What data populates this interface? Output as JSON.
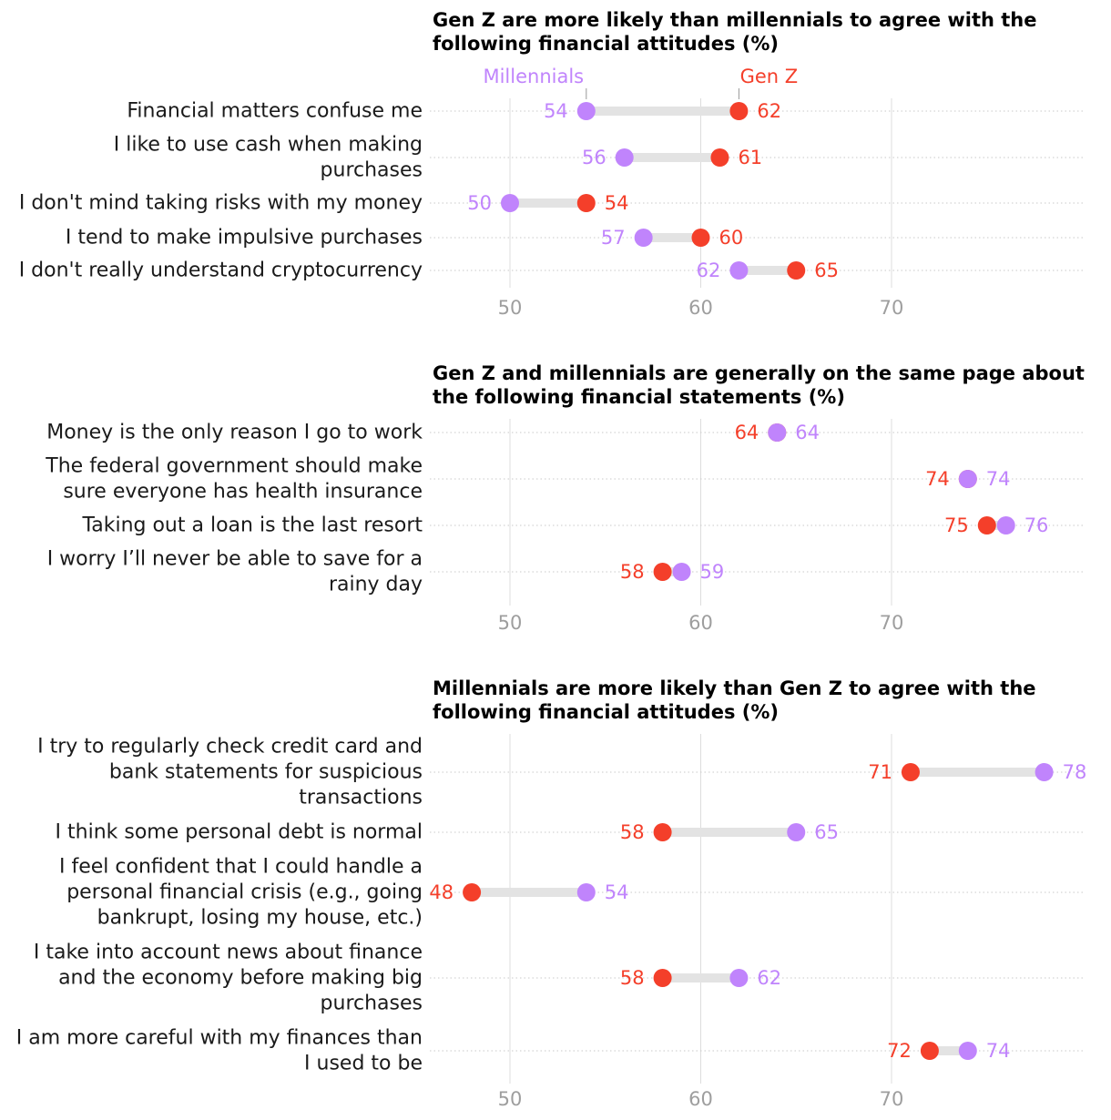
{
  "colors": {
    "millennials": "#c084fc",
    "genz": "#f43f2a",
    "gap": "#e3e3e3",
    "grid": "#dddddd",
    "tick": "#9e9e9e"
  },
  "legend": {
    "millennials": "Millennials",
    "genz": "Gen Z"
  },
  "chart_data": [
    {
      "type": "dumbbell",
      "title": [
        "Gen Z are more likely than millennials to agree with the",
        "following financial attitudes (%)"
      ],
      "x_ticks": [
        50,
        60,
        70
      ],
      "xlim": [
        45.5,
        79.5
      ],
      "rows": [
        {
          "label": [
            "Financial matters confuse me"
          ],
          "millennials": 54,
          "genz": 62
        },
        {
          "label": [
            "I like to use cash when making",
            "purchases"
          ],
          "millennials": 56,
          "genz": 61
        },
        {
          "label": [
            "I don't mind taking risks with my money"
          ],
          "millennials": 50,
          "genz": 54
        },
        {
          "label": [
            "I tend to make impulsive purchases"
          ],
          "millennials": 57,
          "genz": 60
        },
        {
          "label": [
            "I don't really understand cryptocurrency"
          ],
          "millennials": 62,
          "genz": 65
        }
      ]
    },
    {
      "type": "dumbbell",
      "title": [
        "Gen Z and millennials are generally on the same page about",
        "the following financial statements (%)"
      ],
      "x_ticks": [
        50,
        60,
        70
      ],
      "xlim": [
        45.5,
        79.5
      ],
      "rows": [
        {
          "label": [
            "Money is the only reason I go to work"
          ],
          "millennials": 64,
          "genz": 64
        },
        {
          "label": [
            "The federal government should make",
            "sure everyone has health insurance"
          ],
          "millennials": 74,
          "genz": 74
        },
        {
          "label": [
            "Taking out a loan is the last resort"
          ],
          "millennials": 76,
          "genz": 75
        },
        {
          "label": [
            "I worry I’ll never be able to save for a",
            "rainy day"
          ],
          "millennials": 59,
          "genz": 58
        }
      ]
    },
    {
      "type": "dumbbell",
      "title": [
        "Millennials are more likely than Gen Z to agree with the",
        "following financial attitudes (%)"
      ],
      "x_ticks": [
        50,
        60,
        70
      ],
      "xlim": [
        45.5,
        79.5
      ],
      "rows": [
        {
          "label": [
            "I try to regularly check credit card and",
            "bank statements for suspicious",
            "transactions"
          ],
          "millennials": 78,
          "genz": 71
        },
        {
          "label": [
            "I think some personal debt is normal"
          ],
          "millennials": 65,
          "genz": 58
        },
        {
          "label": [
            "I feel confident that I could handle a",
            "personal financial crisis (e.g., going",
            "bankrupt, losing my house, etc.)"
          ],
          "millennials": 54,
          "genz": 48
        },
        {
          "label": [
            "I take into account news about finance",
            "and the economy before making big",
            "purchases"
          ],
          "millennials": 62,
          "genz": 58
        },
        {
          "label": [
            "I am more careful with my finances than",
            "I used to be"
          ],
          "millennials": 74,
          "genz": 72
        }
      ]
    }
  ]
}
